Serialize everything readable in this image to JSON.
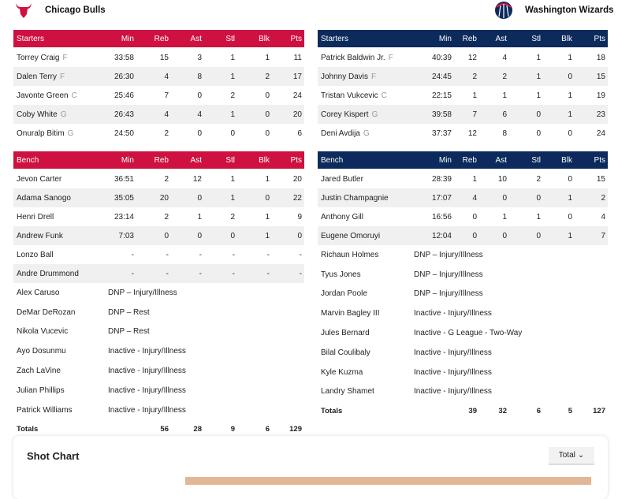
{
  "colors": {
    "home": "#ce1141",
    "away": "#0c2a5b"
  },
  "headers": [
    "Min",
    "Reb",
    "Ast",
    "Stl",
    "Blk",
    "Pts"
  ],
  "home": {
    "name": "Chicago Bulls",
    "logo": "bulls-logo",
    "starters_label": "Starters",
    "bench_label": "Bench",
    "starters": [
      {
        "name": "Torrey Craig",
        "pos": "F",
        "stats": [
          "33:58",
          "15",
          "3",
          "1",
          "1",
          "11"
        ]
      },
      {
        "name": "Dalen Terry",
        "pos": "F",
        "stats": [
          "26:30",
          "4",
          "8",
          "1",
          "2",
          "17"
        ]
      },
      {
        "name": "Javonte Green",
        "pos": "C",
        "stats": [
          "25:46",
          "7",
          "0",
          "2",
          "0",
          "24"
        ]
      },
      {
        "name": "Coby White",
        "pos": "G",
        "stats": [
          "26:43",
          "4",
          "4",
          "1",
          "0",
          "20"
        ]
      },
      {
        "name": "Onuralp Bitim",
        "pos": "G",
        "stats": [
          "24:50",
          "2",
          "0",
          "0",
          "0",
          "6"
        ]
      }
    ],
    "bench": [
      {
        "name": "Jevon Carter",
        "stats": [
          "36:51",
          "2",
          "12",
          "1",
          "1",
          "20"
        ]
      },
      {
        "name": "Adama Sanogo",
        "stats": [
          "35:05",
          "20",
          "0",
          "1",
          "0",
          "22"
        ]
      },
      {
        "name": "Henri Drell",
        "stats": [
          "23:14",
          "2",
          "1",
          "2",
          "1",
          "9"
        ]
      },
      {
        "name": "Andrew Funk",
        "stats": [
          "7:03",
          "0",
          "0",
          "0",
          "1",
          "0"
        ]
      },
      {
        "name": "Lonzo Ball",
        "stats": [
          "-",
          "-",
          "-",
          "-",
          "-",
          "-"
        ]
      },
      {
        "name": "Andre Drummond",
        "stats": [
          "-",
          "-",
          "-",
          "-",
          "-",
          "-"
        ]
      }
    ],
    "inactive": [
      {
        "name": "Alex Caruso",
        "note": "DNP – Injury/Illness"
      },
      {
        "name": "DeMar DeRozan",
        "note": "DNP – Rest"
      },
      {
        "name": "Nikola Vucevic",
        "note": "DNP – Rest"
      },
      {
        "name": "Ayo Dosunmu",
        "note": "Inactive - Injury/Illness"
      },
      {
        "name": "Zach LaVine",
        "note": "Inactive - Injury/Illness"
      },
      {
        "name": "Julian Phillips",
        "note": "Inactive - Injury/Illness"
      },
      {
        "name": "Patrick Williams",
        "note": "Inactive - Injury/Illness"
      }
    ],
    "totals_label": "Totals",
    "totals": [
      "56",
      "28",
      "9",
      "6",
      "129"
    ]
  },
  "away": {
    "name": "Washington Wizards",
    "logo": "wizards-logo",
    "starters_label": "Starters",
    "bench_label": "Bench",
    "starters": [
      {
        "name": "Patrick Baldwin Jr.",
        "pos": "F",
        "stats": [
          "40:39",
          "12",
          "4",
          "1",
          "1",
          "18"
        ]
      },
      {
        "name": "Johnny Davis",
        "pos": "F",
        "stats": [
          "24:45",
          "2",
          "2",
          "1",
          "0",
          "15"
        ]
      },
      {
        "name": "Tristan Vukcevic",
        "pos": "C",
        "stats": [
          "22:15",
          "1",
          "1",
          "1",
          "1",
          "19"
        ]
      },
      {
        "name": "Corey Kispert",
        "pos": "G",
        "stats": [
          "39:58",
          "7",
          "6",
          "0",
          "1",
          "23"
        ]
      },
      {
        "name": "Deni Avdija",
        "pos": "G",
        "stats": [
          "37:37",
          "12",
          "8",
          "0",
          "0",
          "24"
        ]
      }
    ],
    "bench": [
      {
        "name": "Jared Butler",
        "stats": [
          "28:39",
          "1",
          "10",
          "2",
          "0",
          "15"
        ]
      },
      {
        "name": "Justin Champagnie",
        "stats": [
          "17:07",
          "4",
          "0",
          "0",
          "1",
          "2"
        ]
      },
      {
        "name": "Anthony Gill",
        "stats": [
          "16:56",
          "0",
          "1",
          "1",
          "0",
          "4"
        ]
      },
      {
        "name": "Eugene Omoruyi",
        "stats": [
          "12:04",
          "0",
          "0",
          "0",
          "1",
          "7"
        ]
      }
    ],
    "inactive": [
      {
        "name": "Richaun Holmes",
        "note": "DNP – Injury/Illness"
      },
      {
        "name": "Tyus Jones",
        "note": "DNP – Injury/Illness"
      },
      {
        "name": "Jordan Poole",
        "note": "DNP – Injury/Illness"
      },
      {
        "name": "Marvin Bagley III",
        "note": "Inactive - Injury/Illness"
      },
      {
        "name": "Jules Bernard",
        "note": "Inactive - G League - Two-Way"
      },
      {
        "name": "Bilal Coulibaly",
        "note": "Inactive - Injury/Illness"
      },
      {
        "name": "Kyle Kuzma",
        "note": "Inactive - Injury/Illness"
      },
      {
        "name": "Landry Shamet",
        "note": "Inactive - Injury/Illness"
      }
    ],
    "totals_label": "Totals",
    "totals": [
      "39",
      "32",
      "6",
      "5",
      "127"
    ]
  },
  "shot_chart": {
    "title": "Shot Chart",
    "filter": "Total"
  }
}
